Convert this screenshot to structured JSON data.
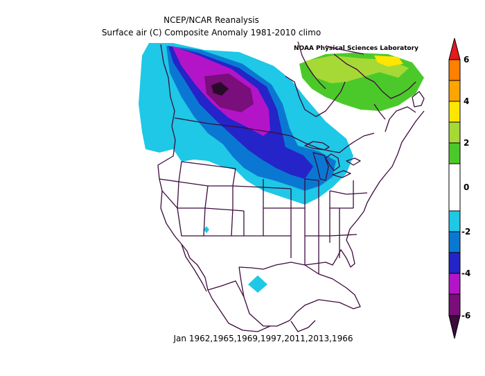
{
  "header": {
    "title": "NCEP/NCAR Reanalysis",
    "subtitle": "Surface air (C) Composite Anomaly 1981-2010 climo",
    "credit": "NOAA Physical Sciences Laboratory"
  },
  "footer": {
    "dates": "Jan 1962,1965,1969,1997,2011,2013,1966"
  },
  "colorbar": {
    "labels": [
      "6",
      "4",
      "2",
      "0",
      "-2",
      "-4",
      "-6"
    ],
    "colors": {
      "gt5": "#e41a1c",
      "c4to5": "#ff7f00",
      "c3to4": "#ffa500",
      "c2to3": "#ffe600",
      "c1to2": "#a6d935",
      "c0to1": "#4cc92a",
      "neutral": "#ffffff",
      "m1to2": "#1ec8e6",
      "m2to3": "#0a78d2",
      "m3to4": "#2424c8",
      "m4to5": "#1414a0",
      "m5to6": "#b414c8",
      "lt6": "#7a0e7a"
    }
  },
  "map": {
    "outline_color": "#3c0a3c"
  }
}
